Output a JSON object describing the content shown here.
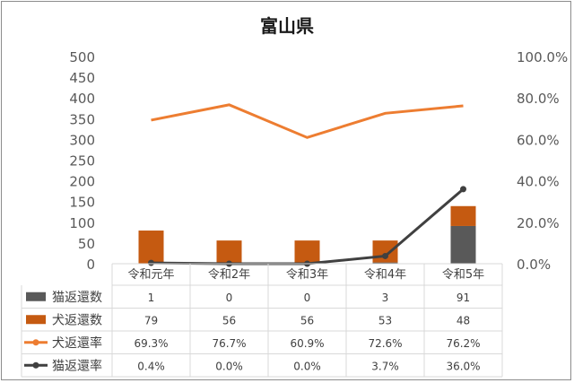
{
  "chart_data": {
    "type": "bar",
    "title": "富山県",
    "categories": [
      "令和元年",
      "令和2年",
      "令和3年",
      "令和4年",
      "令和5年"
    ],
    "ylim": [
      0,
      500
    ],
    "yticks": [
      "0",
      "50",
      "100",
      "150",
      "200",
      "250",
      "300",
      "350",
      "400",
      "450",
      "500"
    ],
    "y2lim": [
      0,
      100
    ],
    "y2ticks": [
      "0.0%",
      "20.0%",
      "40.0%",
      "60.0%",
      "80.0%",
      "100.0%"
    ],
    "grid": false,
    "legend": "data-table",
    "series": [
      {
        "name": "猫返還数",
        "kind": "bar",
        "axis": "left",
        "color": "#595959",
        "values": [
          1,
          0,
          0,
          3,
          91
        ],
        "labels": [
          "1",
          "0",
          "0",
          "3",
          "91"
        ]
      },
      {
        "name": "犬返還数",
        "kind": "bar",
        "axis": "left",
        "color": "#c55a11",
        "values": [
          79,
          56,
          56,
          53,
          48
        ],
        "labels": [
          "79",
          "56",
          "56",
          "53",
          "48"
        ]
      },
      {
        "name": "犬返還率",
        "kind": "line",
        "axis": "right",
        "color": "#ed7d31",
        "values": [
          69.3,
          76.7,
          60.9,
          72.6,
          76.2
        ],
        "labels": [
          "69.3%",
          "76.7%",
          "60.9%",
          "72.6%",
          "76.2%"
        ]
      },
      {
        "name": "猫返還率",
        "kind": "line",
        "axis": "right",
        "color": "#404040",
        "values": [
          0.4,
          0.0,
          0.0,
          3.7,
          36.0
        ],
        "labels": [
          "0.4%",
          "0.0%",
          "0.0%",
          "3.7%",
          "36.0%"
        ]
      }
    ]
  }
}
